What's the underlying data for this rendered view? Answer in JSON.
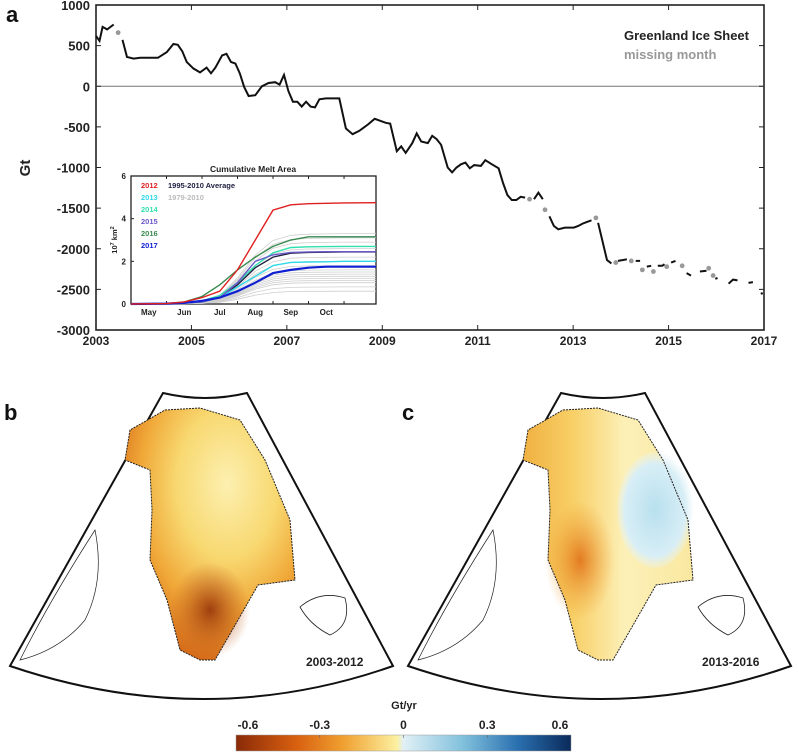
{
  "chart_data": [
    {
      "panel": "a",
      "type": "line",
      "title": "",
      "xlabel": "",
      "ylabel": "Gt",
      "xlim": [
        2003,
        2017
      ],
      "ylim": [
        -3000,
        1000
      ],
      "xticks": [
        "2003",
        "2005",
        "2007",
        "2009",
        "2011",
        "2013",
        "2015",
        "2017"
      ],
      "yticks": [
        "1000",
        "500",
        "0",
        "-500",
        "-1000",
        "-1500",
        "-2000",
        "-2500",
        "-3000"
      ],
      "zero_line": true,
      "legend": {
        "position": "top-right",
        "entries": [
          {
            "label": "Greenland Ice Sheet",
            "color": "#111111"
          },
          {
            "label": "missing month",
            "color": "#999999"
          }
        ]
      },
      "series": [
        {
          "name": "Greenland Ice Sheet",
          "color": "#111111",
          "segments": [
            [
              [
                2003.0,
                620
              ],
              [
                2003.08,
                560
              ],
              [
                2003.15,
                730
              ],
              [
                2003.25,
                700
              ],
              [
                2003.4,
                760
              ]
            ],
            [
              [
                2003.6,
                570
              ],
              [
                2003.7,
                360
              ],
              [
                2003.85,
                340
              ],
              [
                2004.0,
                350
              ],
              [
                2004.2,
                350
              ],
              [
                2004.4,
                350
              ],
              [
                2004.6,
                420
              ],
              [
                2004.75,
                520
              ],
              [
                2004.85,
                510
              ],
              [
                2004.95,
                430
              ],
              [
                2005.05,
                300
              ],
              [
                2005.2,
                220
              ],
              [
                2005.35,
                170
              ],
              [
                2005.5,
                230
              ],
              [
                2005.6,
                160
              ],
              [
                2005.7,
                230
              ],
              [
                2005.85,
                380
              ],
              [
                2005.95,
                400
              ],
              [
                2006.05,
                300
              ],
              [
                2006.15,
                280
              ],
              [
                2006.25,
                160
              ],
              [
                2006.35,
                -10
              ],
              [
                2006.45,
                -120
              ],
              [
                2006.6,
                -110
              ],
              [
                2006.75,
                0
              ],
              [
                2006.9,
                40
              ],
              [
                2007.05,
                50
              ],
              [
                2007.15,
                20
              ],
              [
                2007.25,
                140
              ],
              [
                2007.35,
                -60
              ],
              [
                2007.45,
                -190
              ],
              [
                2007.55,
                -190
              ],
              [
                2007.65,
                -250
              ],
              [
                2007.75,
                -190
              ],
              [
                2007.85,
                -250
              ],
              [
                2007.95,
                -260
              ],
              [
                2008.05,
                -160
              ],
              [
                2008.2,
                -150
              ],
              [
                2008.35,
                -150
              ],
              [
                2008.5,
                -150
              ],
              [
                2008.65,
                -520
              ],
              [
                2008.8,
                -590
              ],
              [
                2008.95,
                -550
              ],
              [
                2009.15,
                -470
              ],
              [
                2009.3,
                -400
              ],
              [
                2009.45,
                -430
              ],
              [
                2009.55,
                -450
              ],
              [
                2009.65,
                -460
              ],
              [
                2009.8,
                -800
              ],
              [
                2009.9,
                -740
              ],
              [
                2010.0,
                -820
              ],
              [
                2010.15,
                -700
              ],
              [
                2010.25,
                -580
              ],
              [
                2010.35,
                -680
              ],
              [
                2010.5,
                -700
              ],
              [
                2010.6,
                -610
              ],
              [
                2010.7,
                -650
              ],
              [
                2010.8,
                -720
              ],
              [
                2010.95,
                -1000
              ],
              [
                2011.05,
                -1060
              ],
              [
                2011.15,
                -1000
              ],
              [
                2011.25,
                -960
              ],
              [
                2011.35,
                -940
              ],
              [
                2011.45,
                -1010
              ],
              [
                2011.55,
                -970
              ],
              [
                2011.7,
                -980
              ],
              [
                2011.8,
                -910
              ],
              [
                2011.95,
                -960
              ],
              [
                2012.1,
                -1010
              ],
              [
                2012.2,
                -1190
              ],
              [
                2012.3,
                -1340
              ],
              [
                2012.4,
                -1400
              ],
              [
                2012.5,
                -1400
              ],
              [
                2012.6,
                -1360
              ],
              [
                2012.7,
                -1370
              ]
            ],
            [
              [
                2012.9,
                -1390
              ],
              [
                2013.0,
                -1310
              ],
              [
                2013.1,
                -1390
              ]
            ],
            [
              [
                2013.25,
                -1600
              ],
              [
                2013.35,
                -1720
              ],
              [
                2013.45,
                -1760
              ],
              [
                2013.6,
                -1740
              ],
              [
                2013.8,
                -1740
              ],
              [
                2013.9,
                -1720
              ],
              [
                2014.0,
                -1690
              ],
              [
                2014.1,
                -1670
              ],
              [
                2014.2,
                -1650
              ]
            ],
            [
              [
                2014.35,
                -1680
              ],
              [
                2014.55,
                -2140
              ],
              [
                2014.65,
                -2180
              ]
            ],
            [
              [
                2014.8,
                -2150
              ],
              [
                2014.9,
                -2140
              ],
              [
                2015.0,
                -2130
              ]
            ],
            [
              [
                2015.2,
                -2150
              ],
              [
                2015.3,
                -2150
              ]
            ],
            [
              [
                2015.45,
                -2220
              ],
              [
                2015.55,
                -2210
              ]
            ],
            [
              [
                2015.7,
                -2210
              ],
              [
                2015.8,
                -2210
              ],
              [
                2015.85,
                -2190
              ]
            ],
            [
              [
                2016.0,
                -2170
              ],
              [
                2016.1,
                -2150
              ]
            ],
            [
              [
                2016.35,
                -2300
              ],
              [
                2016.45,
                -2330
              ]
            ],
            [
              [
                2016.65,
                -2280
              ],
              [
                2016.8,
                -2270
              ]
            ],
            [
              [
                2017.0,
                -2370
              ],
              [
                2017.05,
                -2360
              ]
            ],
            [
              [
                2017.3,
                -2430
              ],
              [
                2017.4,
                -2380
              ],
              [
                2017.5,
                -2390
              ]
            ],
            [
              [
                2017.75,
                -2420
              ],
              [
                2017.85,
                -2410
              ]
            ],
            [
              [
                2018.05,
                -2550
              ]
            ]
          ]
        },
        {
          "name": "missing month",
          "color": "#999999",
          "points": [
            [
              2003.5,
              660
            ],
            [
              2012.8,
              -1390
            ],
            [
              2013.15,
              -1520
            ],
            [
              2014.3,
              -1620
            ],
            [
              2014.75,
              -2170
            ],
            [
              2015.1,
              -2150
            ],
            [
              2015.35,
              -2260
            ],
            [
              2015.6,
              -2280
            ],
            [
              2015.9,
              -2220
            ],
            [
              2016.25,
              -2210
            ],
            [
              2016.85,
              -2240
            ],
            [
              2016.95,
              -2330
            ]
          ]
        }
      ]
    },
    {
      "panel": "a-inset",
      "type": "line",
      "title": "Cumulative Melt Area",
      "xlabel": "",
      "ylabel": "10^7 km^2",
      "ylim": [
        0,
        6
      ],
      "xticks": [
        "May",
        "Jun",
        "Jul",
        "Aug",
        "Sep",
        "Oct"
      ],
      "yticks": [
        "0",
        "2",
        "4",
        "6"
      ],
      "legend": {
        "position": "top-left",
        "entries": [
          {
            "label": "2012",
            "color": "#e02020"
          },
          {
            "label": "2013",
            "color": "#30d8e8"
          },
          {
            "label": "2014",
            "color": "#30e0b0"
          },
          {
            "label": "2015",
            "color": "#6a5ac8"
          },
          {
            "label": "2016",
            "color": "#3a8a50"
          },
          {
            "label": "2017",
            "color": "#1020d0"
          },
          {
            "label": "1995-2010 Average",
            "color": "#222244"
          },
          {
            "label": "1979-2010",
            "color": "#bbbbbb"
          }
        ]
      },
      "x_months": [
        4.0,
        5.0,
        5.5,
        6.0,
        6.5,
        7.0,
        7.5,
        8.0,
        8.5,
        9.0,
        9.5,
        10.0,
        10.9
      ],
      "series": [
        {
          "name": "2012",
          "color": "#e02020",
          "values": [
            0,
            0.02,
            0.1,
            0.3,
            0.6,
            1.6,
            3.0,
            4.4,
            4.65,
            4.7,
            4.72,
            4.74,
            4.75
          ]
        },
        {
          "name": "2013",
          "color": "#30d8e8",
          "values": [
            0,
            0.02,
            0.05,
            0.1,
            0.3,
            0.8,
            1.3,
            1.8,
            1.95,
            1.97,
            1.98,
            2.0,
            2.0
          ]
        },
        {
          "name": "2014",
          "color": "#30e0b0",
          "values": [
            0,
            0.02,
            0.05,
            0.15,
            0.4,
            1.0,
            1.8,
            2.4,
            2.65,
            2.68,
            2.69,
            2.7,
            2.7
          ]
        },
        {
          "name": "2015",
          "color": "#6a5ac8",
          "values": [
            0,
            0.02,
            0.05,
            0.1,
            0.3,
            1.0,
            2.0,
            2.3,
            2.42,
            2.44,
            2.45,
            2.45,
            2.45
          ]
        },
        {
          "name": "2016",
          "color": "#3a8a50",
          "values": [
            0,
            0.03,
            0.1,
            0.35,
            0.9,
            1.6,
            2.2,
            2.7,
            3.0,
            3.15,
            3.15,
            3.15,
            3.15
          ]
        },
        {
          "name": "2017",
          "color": "#1020d0",
          "values": [
            0,
            0.02,
            0.05,
            0.15,
            0.3,
            0.6,
            1.0,
            1.45,
            1.6,
            1.7,
            1.75,
            1.75,
            1.75
          ]
        },
        {
          "name": "1995-2010 Average",
          "color": "#222244",
          "values": [
            0,
            0.02,
            0.05,
            0.1,
            0.3,
            0.9,
            1.7,
            2.2,
            2.38,
            2.42,
            2.43,
            2.44,
            2.44
          ]
        }
      ],
      "background_years": {
        "name": "1979-2010",
        "color": "#cfcfcf",
        "finals": [
          0.6,
          0.8,
          1.0,
          1.1,
          1.2,
          1.3,
          1.4,
          1.5,
          1.6,
          1.8,
          2.0,
          2.2,
          2.6,
          2.9,
          3.1,
          3.3
        ]
      }
    },
    {
      "panel": "b",
      "type": "heatmap",
      "title": "2003-2012",
      "description": "Map of Greenland mass change rate, strongest loss in the southwest (about -0.6 Gt/yr), near zero in the northeast interior"
    },
    {
      "panel": "c",
      "type": "heatmap",
      "title": "2013-2016",
      "description": "Map of Greenland mass change rate, moderate loss in the west (about -0.3 Gt/yr), slight gain in the east-central region (about +0.1 Gt/yr)"
    },
    {
      "panel": "colorbar",
      "type": "heatmap",
      "label": "Gt/yr",
      "range": [
        -0.6,
        0.6
      ],
      "ticks": [
        "-0.6",
        "-0.3",
        "0",
        "0.3",
        "0.6"
      ],
      "colors": [
        "#8a2a08",
        "#e07818",
        "#f8c850",
        "#fcf0a8",
        "#d8eef6",
        "#80c0dc",
        "#2a70b0",
        "#0a2a5a"
      ]
    }
  ],
  "labels": {
    "a": "a",
    "b": "b",
    "c": "c"
  }
}
